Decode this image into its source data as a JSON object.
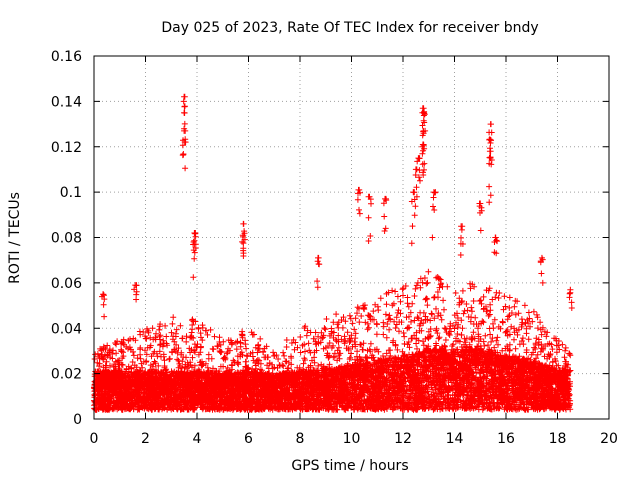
{
  "chart_data": {
    "type": "scatter",
    "title": "Day 025 of 2023, Rate Of TEC Index for receiver bndy",
    "xlabel": "GPS time / hours",
    "ylabel": "ROTI / TECUs",
    "xlim": [
      0,
      20
    ],
    "ylim": [
      0,
      0.16
    ],
    "x_ticks": [
      0,
      2,
      4,
      6,
      8,
      10,
      12,
      14,
      16,
      18,
      20
    ],
    "x_tick_labels": [
      "0",
      "2",
      "4",
      "6",
      "8",
      "10",
      "12",
      "14",
      "16",
      "18",
      "20"
    ],
    "y_ticks": [
      0,
      0.02,
      0.04,
      0.06,
      0.08,
      0.1,
      0.12,
      0.14,
      0.16
    ],
    "y_tick_labels": [
      "0",
      "0.02",
      "0.04",
      "0.06",
      "0.08",
      "0.1",
      "0.12",
      "0.14",
      "0.16"
    ],
    "grid": true,
    "marker": "+",
    "color": "#ff0000",
    "x_data_range": [
      0,
      18.5
    ],
    "baseline_roti": 0.015,
    "envelope": [
      {
        "x": 0.0,
        "typical": 0.015,
        "upper": 0.03
      },
      {
        "x": 1.0,
        "typical": 0.015,
        "upper": 0.035
      },
      {
        "x": 2.0,
        "typical": 0.015,
        "upper": 0.04
      },
      {
        "x": 3.0,
        "typical": 0.015,
        "upper": 0.045
      },
      {
        "x": 4.0,
        "typical": 0.015,
        "upper": 0.045
      },
      {
        "x": 5.0,
        "typical": 0.014,
        "upper": 0.035
      },
      {
        "x": 6.0,
        "typical": 0.015,
        "upper": 0.04
      },
      {
        "x": 7.0,
        "typical": 0.014,
        "upper": 0.03
      },
      {
        "x": 8.0,
        "typical": 0.015,
        "upper": 0.04
      },
      {
        "x": 9.0,
        "typical": 0.016,
        "upper": 0.045
      },
      {
        "x": 10.0,
        "typical": 0.018,
        "upper": 0.05
      },
      {
        "x": 11.0,
        "typical": 0.02,
        "upper": 0.055
      },
      {
        "x": 12.0,
        "typical": 0.022,
        "upper": 0.06
      },
      {
        "x": 13.0,
        "typical": 0.025,
        "upper": 0.065
      },
      {
        "x": 14.0,
        "typical": 0.025,
        "upper": 0.06
      },
      {
        "x": 15.0,
        "typical": 0.025,
        "upper": 0.06
      },
      {
        "x": 16.0,
        "typical": 0.022,
        "upper": 0.055
      },
      {
        "x": 17.0,
        "typical": 0.02,
        "upper": 0.05
      },
      {
        "x": 18.0,
        "typical": 0.016,
        "upper": 0.035
      },
      {
        "x": 18.5,
        "typical": 0.015,
        "upper": 0.03
      }
    ],
    "bursts": [
      {
        "x": 0.35,
        "y": 0.055
      },
      {
        "x": 1.6,
        "y": 0.059
      },
      {
        "x": 3.5,
        "y": 0.142
      },
      {
        "x": 3.5,
        "y": 0.135
      },
      {
        "x": 3.5,
        "y": 0.127
      },
      {
        "x": 3.9,
        "y": 0.082
      },
      {
        "x": 3.9,
        "y": 0.077
      },
      {
        "x": 5.8,
        "y": 0.086
      },
      {
        "x": 5.8,
        "y": 0.081
      },
      {
        "x": 8.7,
        "y": 0.071
      },
      {
        "x": 10.3,
        "y": 0.101
      },
      {
        "x": 10.7,
        "y": 0.098
      },
      {
        "x": 11.3,
        "y": 0.097
      },
      {
        "x": 12.8,
        "y": 0.137
      },
      {
        "x": 12.8,
        "y": 0.135
      },
      {
        "x": 12.8,
        "y": 0.127
      },
      {
        "x": 12.8,
        "y": 0.121
      },
      {
        "x": 12.6,
        "y": 0.115
      },
      {
        "x": 12.5,
        "y": 0.11
      },
      {
        "x": 12.4,
        "y": 0.1
      },
      {
        "x": 13.2,
        "y": 0.1
      },
      {
        "x": 15.4,
        "y": 0.13
      },
      {
        "x": 15.4,
        "y": 0.123
      },
      {
        "x": 15.4,
        "y": 0.118
      },
      {
        "x": 15.0,
        "y": 0.095
      },
      {
        "x": 15.6,
        "y": 0.08
      },
      {
        "x": 14.3,
        "y": 0.085
      },
      {
        "x": 17.4,
        "y": 0.071
      },
      {
        "x": 18.5,
        "y": 0.057
      }
    ]
  }
}
